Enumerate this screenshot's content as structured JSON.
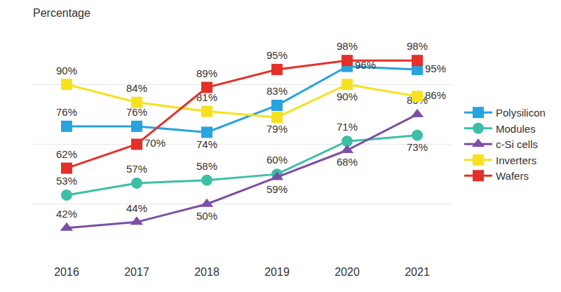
{
  "chart_data": {
    "type": "line",
    "ylabel": "Percentage",
    "categories": [
      "2016",
      "2017",
      "2018",
      "2019",
      "2020",
      "2021"
    ],
    "series": [
      {
        "name": "Polysilicon",
        "color": "#27a3dd",
        "marker": "square",
        "values": [
          76,
          76,
          74,
          83,
          96,
          95
        ],
        "value_labels": [
          "76%",
          "76%",
          "74%",
          "83%",
          "96%",
          "95%"
        ]
      },
      {
        "name": "Modules",
        "color": "#3cbfa6",
        "marker": "circle",
        "values": [
          53,
          57,
          58,
          60,
          71,
          73
        ],
        "value_labels": [
          "53%",
          "57%",
          "58%",
          "60%",
          "71%",
          "73%"
        ]
      },
      {
        "name": "c-Si cells",
        "color": "#7b4fa6",
        "marker": "triangle-up",
        "values": [
          42,
          44,
          50,
          59,
          68,
          80
        ],
        "value_labels": [
          "42%",
          "44%",
          "50%",
          "59%",
          "68%",
          "80%"
        ]
      },
      {
        "name": "Inverters",
        "color": "#f7e11e",
        "marker": "square",
        "values": [
          90,
          84,
          81,
          79,
          90,
          86
        ],
        "value_labels": [
          "90%",
          "84%",
          "81%",
          "79%",
          "90%",
          "86%"
        ]
      },
      {
        "name": "Wafers",
        "color": "#e5302a",
        "marker": "square",
        "values": [
          62,
          70,
          89,
          95,
          98,
          98
        ],
        "value_labels": [
          "62%",
          "70%",
          "89%",
          "95%",
          "98%",
          "98%"
        ]
      }
    ],
    "ylim": [
      30,
      110
    ],
    "yticks": [
      30,
      50,
      70,
      90,
      110
    ],
    "grid": true,
    "legend": "right",
    "data_labels": true,
    "tick_labels": "x"
  }
}
